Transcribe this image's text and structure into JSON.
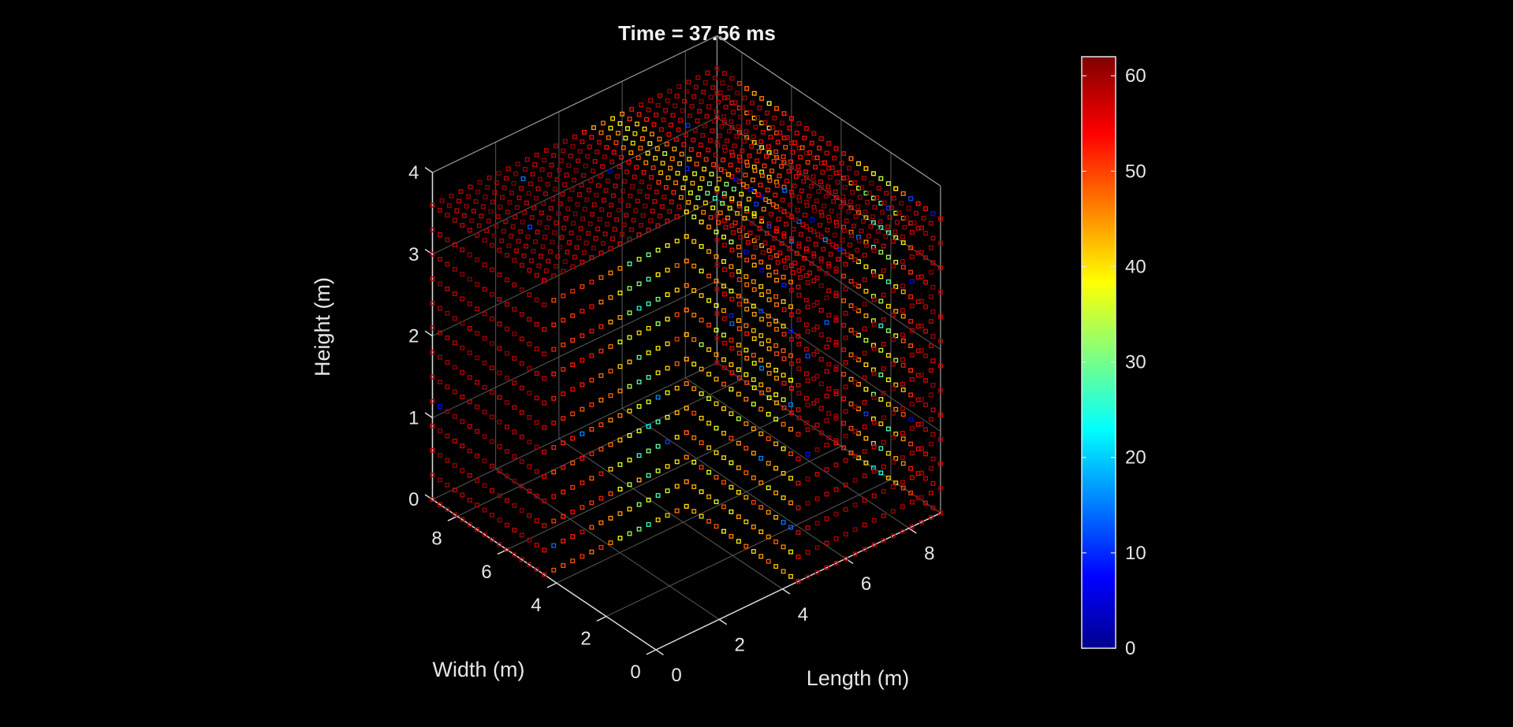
{
  "chart_data": {
    "type": "scatter3d",
    "title": "Time = 37.56 ms",
    "xlabel": "Length (m)",
    "ylabel": "Width (m)",
    "zlabel": "Height (m)",
    "x_ticks": [
      "0",
      "2",
      "4",
      "6",
      "8"
    ],
    "y_ticks": [
      "0",
      "2",
      "4",
      "6",
      "8"
    ],
    "z_ticks": [
      "0",
      "1",
      "2",
      "3",
      "4"
    ],
    "xlim": [
      0,
      9
    ],
    "ylim": [
      0,
      9
    ],
    "zlim": [
      0,
      4
    ],
    "marker": "square-outline",
    "color_scale": "jet",
    "clim": [
      0,
      62
    ],
    "colorbar_ticks": [
      "0",
      "10",
      "20",
      "30",
      "40",
      "50",
      "60"
    ],
    "colorbar_tick_values": [
      0,
      10,
      20,
      30,
      40,
      50,
      60
    ],
    "background": "#000000",
    "axis_color": "#d9d9d9",
    "grid": true,
    "geometry": {
      "type": "L-shaped room",
      "outer": {
        "x": [
          0,
          9
        ],
        "y": [
          0,
          9
        ],
        "z": [
          0,
          3.6
        ]
      },
      "cutout": {
        "x": [
          0,
          4.5
        ],
        "y": [
          0,
          4.5
        ]
      },
      "grid_spacing": 0.3
    },
    "field_summary": {
      "dominant_value_range": [
        45,
        62
      ],
      "low_value_regions": "vertical bands near the interior corner and along the far faces, values approx 10-38"
    }
  }
}
